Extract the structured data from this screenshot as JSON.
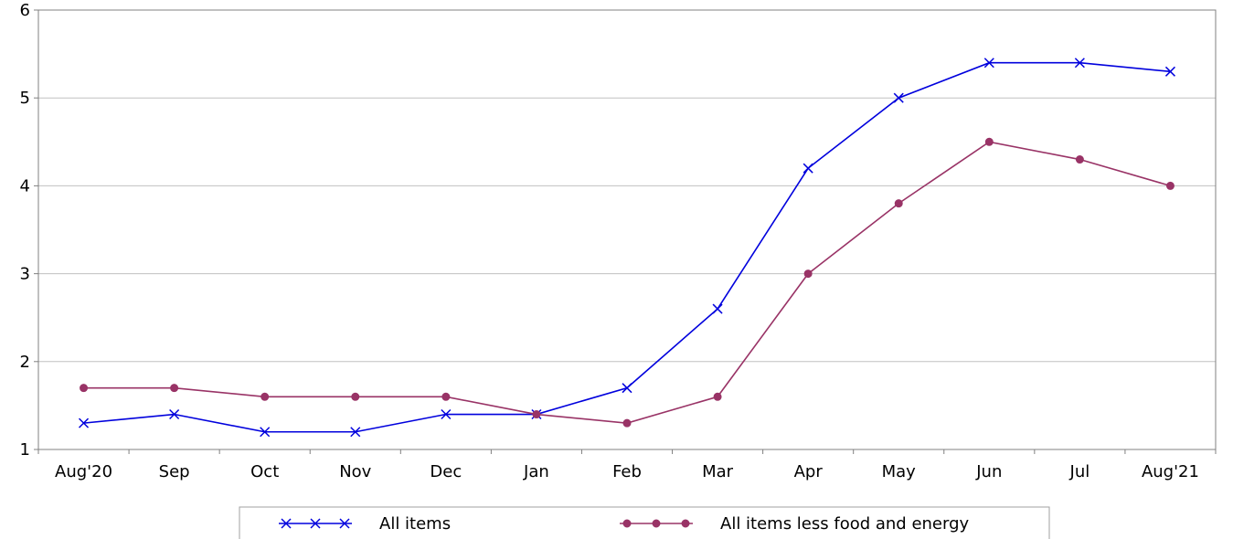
{
  "chart_data": {
    "type": "line",
    "categories": [
      "Aug'20",
      "Sep",
      "Oct",
      "Nov",
      "Dec",
      "Jan",
      "Feb",
      "Mar",
      "Apr",
      "May",
      "Jun",
      "Jul",
      "Aug'21"
    ],
    "series": [
      {
        "name": "All items",
        "values": [
          1.3,
          1.4,
          1.2,
          1.2,
          1.4,
          1.4,
          1.7,
          2.6,
          4.2,
          5.0,
          5.4,
          5.4,
          5.3
        ],
        "color": "#0000dd",
        "marker": "x"
      },
      {
        "name": "All items less food and energy",
        "values": [
          1.7,
          1.7,
          1.6,
          1.6,
          1.6,
          1.4,
          1.3,
          1.6,
          3.0,
          3.8,
          4.5,
          4.3,
          4.0
        ],
        "color": "#993366",
        "marker": "circle"
      }
    ],
    "ylim": [
      1,
      6
    ],
    "yticks": [
      1,
      2,
      3,
      4,
      5,
      6
    ],
    "grid": true,
    "legend": "bottom",
    "title": "",
    "xlabel": "",
    "ylabel": ""
  }
}
